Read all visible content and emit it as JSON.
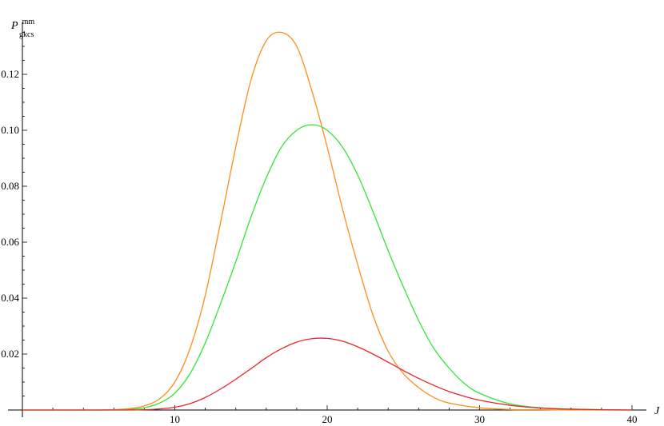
{
  "chart_data": {
    "type": "line",
    "xlabel": "J",
    "ylabel": {
      "base": "P",
      "superscript": "mm",
      "subscript": "gkcs"
    },
    "xlim": [
      0,
      40
    ],
    "ylim": [
      0,
      0.135
    ],
    "x_ticks": [
      10,
      20,
      30,
      40
    ],
    "y_ticks": [
      0.02,
      0.04,
      0.06,
      0.08,
      0.1,
      0.12
    ],
    "y_tick_labels": [
      "0.02",
      "0.04",
      "0.06",
      "0.08",
      "0.10",
      "0.12"
    ],
    "grid": false,
    "series": [
      {
        "color": "#ff8c1a",
        "x": [
          0,
          5,
          7,
          8,
          9,
          10,
          11,
          12,
          13,
          14,
          15,
          16,
          17,
          18,
          19,
          20,
          21,
          22,
          23,
          24,
          25,
          26,
          27,
          28,
          30,
          32,
          34,
          36,
          38,
          40
        ],
        "y": [
          0,
          0,
          0.0005,
          0.0015,
          0.004,
          0.01,
          0.022,
          0.041,
          0.067,
          0.094,
          0.118,
          0.132,
          0.135,
          0.13,
          0.114,
          0.094,
          0.072,
          0.052,
          0.034,
          0.021,
          0.013,
          0.008,
          0.0045,
          0.0025,
          0.0008,
          0.0002,
          0.0001,
          0,
          0,
          0
        ]
      },
      {
        "color": "#33e633",
        "x": [
          0,
          5,
          7,
          8,
          9,
          10,
          11,
          12,
          13,
          14,
          15,
          16,
          17,
          18,
          19,
          20,
          21,
          22,
          23,
          24,
          25,
          26,
          27,
          28,
          29,
          30,
          32,
          34,
          36,
          38,
          40
        ],
        "y": [
          0,
          0,
          0.0002,
          0.0008,
          0.0025,
          0.006,
          0.013,
          0.024,
          0.038,
          0.053,
          0.069,
          0.083,
          0.094,
          0.1,
          0.102,
          0.1,
          0.094,
          0.084,
          0.071,
          0.057,
          0.044,
          0.032,
          0.022,
          0.015,
          0.0095,
          0.006,
          0.0022,
          0.0008,
          0.0003,
          0.0001,
          0
        ]
      },
      {
        "color": "#e6262d",
        "x": [
          0,
          5,
          7,
          8,
          9,
          10,
          11,
          12,
          13,
          14,
          15,
          16,
          17,
          18,
          19,
          20,
          21,
          22,
          23,
          24,
          25,
          26,
          27,
          28,
          29,
          30,
          32,
          34,
          36,
          38,
          40
        ],
        "y": [
          0,
          0,
          0,
          0.0001,
          0.0004,
          0.001,
          0.0023,
          0.0045,
          0.0075,
          0.011,
          0.0148,
          0.0187,
          0.0219,
          0.0243,
          0.0255,
          0.0256,
          0.0246,
          0.0226,
          0.02,
          0.0171,
          0.0141,
          0.0113,
          0.0088,
          0.0066,
          0.0049,
          0.0035,
          0.0017,
          0.0007,
          0.0003,
          0.0001,
          0
        ]
      }
    ]
  }
}
